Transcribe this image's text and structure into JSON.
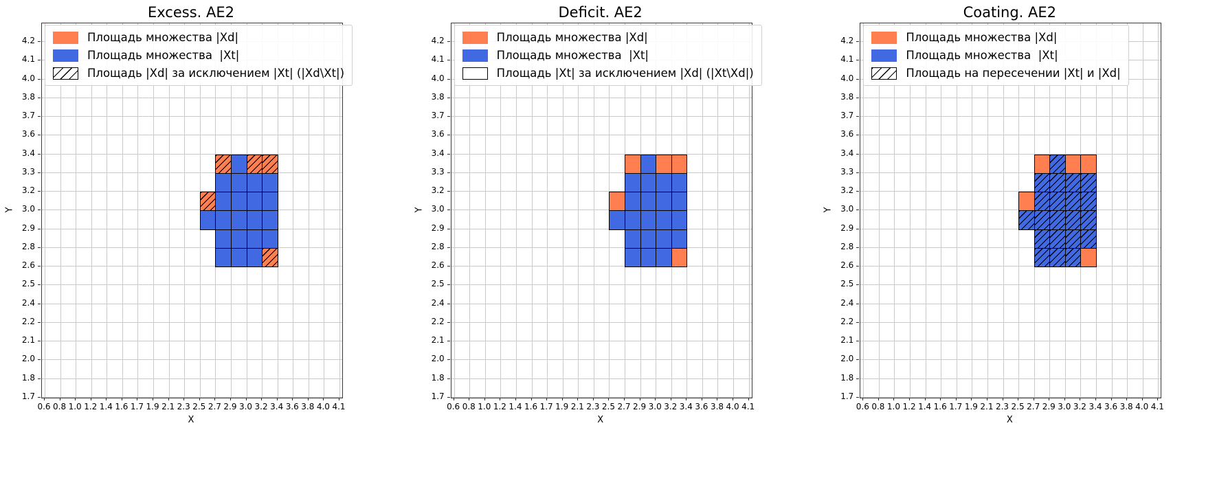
{
  "colors": {
    "orange": "#ff7f50",
    "blue": "#4169e1",
    "grid": "#c9c9c9",
    "cell_border": "#000000",
    "background": "#ffffff"
  },
  "chart_data": [
    {
      "type": "heatmap",
      "title": "Excess. AE2",
      "xlabel": "X",
      "ylabel": "Y",
      "grid": true,
      "legend_position": "upper left",
      "xticks": [
        "0.6",
        "0.8",
        "1.0",
        "1.2",
        "1.4",
        "1.6",
        "1.7",
        "1.9",
        "2.1",
        "2.3",
        "2.5",
        "2.7",
        "2.9",
        "3.0",
        "3.2",
        "3.4",
        "3.6",
        "3.8",
        "4.0",
        "4.1"
      ],
      "yticks": [
        "1.7",
        "1.8",
        "2.0",
        "2.1",
        "2.2",
        "2.4",
        "2.5",
        "2.6",
        "2.8",
        "2.9",
        "3.0",
        "3.2",
        "3.3",
        "3.4",
        "3.6",
        "3.7",
        "3.8",
        "4.0",
        "4.1",
        "4.2"
      ],
      "legend": [
        {
          "label": "Площадь множества |Xd|",
          "fill": "orange",
          "hatch": false,
          "outline": false
        },
        {
          "label": "Площадь множества  |Xt|",
          "fill": "blue",
          "hatch": false,
          "outline": false
        },
        {
          "label": "Площадь |Xd| за исключением |Xt| (|Xd\\Xt|)",
          "fill": "none",
          "hatch": true,
          "outline": true
        }
      ],
      "cells": [
        {
          "c": 11,
          "r": 12,
          "fill": "orange",
          "hatch": true
        },
        {
          "c": 12,
          "r": 12,
          "fill": "blue",
          "hatch": false
        },
        {
          "c": 13,
          "r": 12,
          "fill": "orange",
          "hatch": true
        },
        {
          "c": 14,
          "r": 12,
          "fill": "orange",
          "hatch": true
        },
        {
          "c": 11,
          "r": 11,
          "fill": "blue",
          "hatch": false
        },
        {
          "c": 12,
          "r": 11,
          "fill": "blue",
          "hatch": false
        },
        {
          "c": 13,
          "r": 11,
          "fill": "blue",
          "hatch": false
        },
        {
          "c": 14,
          "r": 11,
          "fill": "blue",
          "hatch": false
        },
        {
          "c": 10,
          "r": 10,
          "fill": "orange",
          "hatch": true
        },
        {
          "c": 11,
          "r": 10,
          "fill": "blue",
          "hatch": false
        },
        {
          "c": 12,
          "r": 10,
          "fill": "blue",
          "hatch": false
        },
        {
          "c": 13,
          "r": 10,
          "fill": "blue",
          "hatch": false
        },
        {
          "c": 14,
          "r": 10,
          "fill": "blue",
          "hatch": false
        },
        {
          "c": 10,
          "r": 9,
          "fill": "blue",
          "hatch": false
        },
        {
          "c": 11,
          "r": 9,
          "fill": "blue",
          "hatch": false
        },
        {
          "c": 12,
          "r": 9,
          "fill": "blue",
          "hatch": false
        },
        {
          "c": 13,
          "r": 9,
          "fill": "blue",
          "hatch": false
        },
        {
          "c": 14,
          "r": 9,
          "fill": "blue",
          "hatch": false
        },
        {
          "c": 11,
          "r": 8,
          "fill": "blue",
          "hatch": false
        },
        {
          "c": 12,
          "r": 8,
          "fill": "blue",
          "hatch": false
        },
        {
          "c": 13,
          "r": 8,
          "fill": "blue",
          "hatch": false
        },
        {
          "c": 14,
          "r": 8,
          "fill": "blue",
          "hatch": false
        },
        {
          "c": 11,
          "r": 7,
          "fill": "blue",
          "hatch": false
        },
        {
          "c": 12,
          "r": 7,
          "fill": "blue",
          "hatch": false
        },
        {
          "c": 13,
          "r": 7,
          "fill": "blue",
          "hatch": false
        },
        {
          "c": 14,
          "r": 7,
          "fill": "orange",
          "hatch": true
        }
      ]
    },
    {
      "type": "heatmap",
      "title": "Deficit. AE2",
      "xlabel": "X",
      "ylabel": "Y",
      "grid": true,
      "legend_position": "upper left",
      "xticks": [
        "0.6",
        "0.8",
        "1.0",
        "1.2",
        "1.4",
        "1.6",
        "1.7",
        "1.9",
        "2.1",
        "2.3",
        "2.5",
        "2.7",
        "2.9",
        "3.0",
        "3.2",
        "3.4",
        "3.6",
        "3.8",
        "4.0",
        "4.1"
      ],
      "yticks": [
        "1.7",
        "1.8",
        "2.0",
        "2.1",
        "2.2",
        "2.4",
        "2.5",
        "2.6",
        "2.8",
        "2.9",
        "3.0",
        "3.2",
        "3.3",
        "3.4",
        "3.6",
        "3.7",
        "3.8",
        "4.0",
        "4.1",
        "4.2"
      ],
      "legend": [
        {
          "label": "Площадь множества |Xd|",
          "fill": "orange",
          "hatch": false,
          "outline": false
        },
        {
          "label": "Площадь множества  |Xt|",
          "fill": "blue",
          "hatch": false,
          "outline": false
        },
        {
          "label": "Площадь |Xt| за исключением |Xd| (|Xt\\Xd|)",
          "fill": "none",
          "hatch": false,
          "outline": true
        }
      ],
      "cells": [
        {
          "c": 11,
          "r": 12,
          "fill": "orange",
          "hatch": false
        },
        {
          "c": 12,
          "r": 12,
          "fill": "blue",
          "hatch": false
        },
        {
          "c": 13,
          "r": 12,
          "fill": "orange",
          "hatch": false
        },
        {
          "c": 14,
          "r": 12,
          "fill": "orange",
          "hatch": false
        },
        {
          "c": 11,
          "r": 11,
          "fill": "blue",
          "hatch": false
        },
        {
          "c": 12,
          "r": 11,
          "fill": "blue",
          "hatch": false
        },
        {
          "c": 13,
          "r": 11,
          "fill": "blue",
          "hatch": false
        },
        {
          "c": 14,
          "r": 11,
          "fill": "blue",
          "hatch": false
        },
        {
          "c": 10,
          "r": 10,
          "fill": "orange",
          "hatch": false
        },
        {
          "c": 11,
          "r": 10,
          "fill": "blue",
          "hatch": false
        },
        {
          "c": 12,
          "r": 10,
          "fill": "blue",
          "hatch": false
        },
        {
          "c": 13,
          "r": 10,
          "fill": "blue",
          "hatch": false
        },
        {
          "c": 14,
          "r": 10,
          "fill": "blue",
          "hatch": false
        },
        {
          "c": 10,
          "r": 9,
          "fill": "blue",
          "hatch": false
        },
        {
          "c": 11,
          "r": 9,
          "fill": "blue",
          "hatch": false
        },
        {
          "c": 12,
          "r": 9,
          "fill": "blue",
          "hatch": false
        },
        {
          "c": 13,
          "r": 9,
          "fill": "blue",
          "hatch": false
        },
        {
          "c": 14,
          "r": 9,
          "fill": "blue",
          "hatch": false
        },
        {
          "c": 11,
          "r": 8,
          "fill": "blue",
          "hatch": false
        },
        {
          "c": 12,
          "r": 8,
          "fill": "blue",
          "hatch": false
        },
        {
          "c": 13,
          "r": 8,
          "fill": "blue",
          "hatch": false
        },
        {
          "c": 14,
          "r": 8,
          "fill": "blue",
          "hatch": false
        },
        {
          "c": 11,
          "r": 7,
          "fill": "blue",
          "hatch": false
        },
        {
          "c": 12,
          "r": 7,
          "fill": "blue",
          "hatch": false
        },
        {
          "c": 13,
          "r": 7,
          "fill": "blue",
          "hatch": false
        },
        {
          "c": 14,
          "r": 7,
          "fill": "orange",
          "hatch": false
        }
      ]
    },
    {
      "type": "heatmap",
      "title": "Coating. AE2",
      "xlabel": "X",
      "ylabel": "Y",
      "grid": true,
      "legend_position": "upper left",
      "xticks": [
        "0.6",
        "0.8",
        "1.0",
        "1.2",
        "1.4",
        "1.6",
        "1.7",
        "1.9",
        "2.1",
        "2.3",
        "2.5",
        "2.7",
        "2.9",
        "3.0",
        "3.2",
        "3.4",
        "3.6",
        "3.8",
        "4.0",
        "4.1"
      ],
      "yticks": [
        "1.7",
        "1.8",
        "2.0",
        "2.1",
        "2.2",
        "2.4",
        "2.5",
        "2.6",
        "2.8",
        "2.9",
        "3.0",
        "3.2",
        "3.3",
        "3.4",
        "3.6",
        "3.7",
        "3.8",
        "4.0",
        "4.1",
        "4.2"
      ],
      "legend": [
        {
          "label": "Площадь множества |Xd|",
          "fill": "orange",
          "hatch": false,
          "outline": false
        },
        {
          "label": "Площадь множества  |Xt|",
          "fill": "blue",
          "hatch": false,
          "outline": false
        },
        {
          "label": "Площадь на пересечении |Xt| и |Xd|",
          "fill": "none",
          "hatch": true,
          "outline": true
        }
      ],
      "cells": [
        {
          "c": 11,
          "r": 12,
          "fill": "orange",
          "hatch": false
        },
        {
          "c": 12,
          "r": 12,
          "fill": "blue",
          "hatch": true
        },
        {
          "c": 13,
          "r": 12,
          "fill": "orange",
          "hatch": false
        },
        {
          "c": 14,
          "r": 12,
          "fill": "orange",
          "hatch": false
        },
        {
          "c": 11,
          "r": 11,
          "fill": "blue",
          "hatch": true
        },
        {
          "c": 12,
          "r": 11,
          "fill": "blue",
          "hatch": true
        },
        {
          "c": 13,
          "r": 11,
          "fill": "blue",
          "hatch": true
        },
        {
          "c": 14,
          "r": 11,
          "fill": "blue",
          "hatch": true
        },
        {
          "c": 10,
          "r": 10,
          "fill": "orange",
          "hatch": false
        },
        {
          "c": 11,
          "r": 10,
          "fill": "blue",
          "hatch": true
        },
        {
          "c": 12,
          "r": 10,
          "fill": "blue",
          "hatch": true
        },
        {
          "c": 13,
          "r": 10,
          "fill": "blue",
          "hatch": true
        },
        {
          "c": 14,
          "r": 10,
          "fill": "blue",
          "hatch": true
        },
        {
          "c": 10,
          "r": 9,
          "fill": "blue",
          "hatch": true
        },
        {
          "c": 11,
          "r": 9,
          "fill": "blue",
          "hatch": true
        },
        {
          "c": 12,
          "r": 9,
          "fill": "blue",
          "hatch": true
        },
        {
          "c": 13,
          "r": 9,
          "fill": "blue",
          "hatch": true
        },
        {
          "c": 14,
          "r": 9,
          "fill": "blue",
          "hatch": true
        },
        {
          "c": 11,
          "r": 8,
          "fill": "blue",
          "hatch": true
        },
        {
          "c": 12,
          "r": 8,
          "fill": "blue",
          "hatch": true
        },
        {
          "c": 13,
          "r": 8,
          "fill": "blue",
          "hatch": true
        },
        {
          "c": 14,
          "r": 8,
          "fill": "blue",
          "hatch": true
        },
        {
          "c": 11,
          "r": 7,
          "fill": "blue",
          "hatch": true
        },
        {
          "c": 12,
          "r": 7,
          "fill": "blue",
          "hatch": true
        },
        {
          "c": 13,
          "r": 7,
          "fill": "blue",
          "hatch": true
        },
        {
          "c": 14,
          "r": 7,
          "fill": "orange",
          "hatch": false
        }
      ]
    }
  ]
}
